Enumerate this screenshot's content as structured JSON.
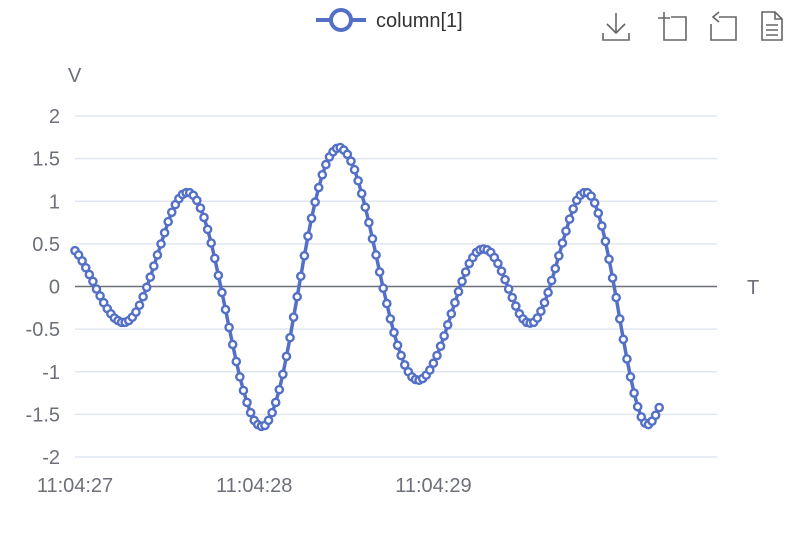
{
  "toolbox": {
    "items": [
      {
        "icon": "download-icon",
        "name": "save-as-image-button"
      },
      {
        "icon": "zoom-icon",
        "name": "data-zoom-button"
      },
      {
        "icon": "restore-icon",
        "name": "restore-button"
      },
      {
        "icon": "data-view-icon",
        "name": "data-view-button"
      }
    ]
  },
  "colors": {
    "series": "#5470c6",
    "axis": "#6e7079",
    "grid": "#e0e6f1",
    "zero_line": "#6e7079",
    "text": "#333333"
  },
  "chart_data": {
    "type": "line",
    "title": "",
    "legend": {
      "position": "top-center",
      "entries": [
        "column[1]"
      ]
    },
    "xlabel": "T",
    "ylabel": "V",
    "ylim": [
      -2,
      2
    ],
    "yticks": [
      2,
      1.5,
      1,
      0.5,
      0,
      -0.5,
      -1,
      -1.5,
      -2
    ],
    "ytick_labels": [
      "2",
      "1.5",
      "1",
      "0.5",
      "0",
      "-0.5",
      "-1",
      "-1.5",
      "-2"
    ],
    "x_start": "11:04:27",
    "x_step_seconds": 0.02,
    "xlim": [
      "11:04:27",
      "11:04:29.98"
    ],
    "xtick_labels": [
      "11:04:27",
      "11:04:28",
      "11:04:29"
    ],
    "grid": true,
    "series": [
      {
        "name": "column[1]",
        "values": [
          0.42,
          0.37,
          0.3,
          0.22,
          0.14,
          0.06,
          -0.03,
          -0.11,
          -0.19,
          -0.26,
          -0.32,
          -0.37,
          -0.4,
          -0.42,
          -0.42,
          -0.4,
          -0.36,
          -0.3,
          -0.22,
          -0.12,
          -0.01,
          0.11,
          0.24,
          0.37,
          0.5,
          0.63,
          0.76,
          0.87,
          0.96,
          1.03,
          1.08,
          1.1,
          1.1,
          1.07,
          1.01,
          0.92,
          0.81,
          0.67,
          0.51,
          0.33,
          0.13,
          -0.07,
          -0.27,
          -0.48,
          -0.68,
          -0.88,
          -1.06,
          -1.22,
          -1.36,
          -1.48,
          -1.57,
          -1.62,
          -1.64,
          -1.63,
          -1.57,
          -1.48,
          -1.36,
          -1.21,
          -1.03,
          -0.82,
          -0.6,
          -0.36,
          -0.12,
          0.12,
          0.36,
          0.59,
          0.8,
          0.99,
          1.16,
          1.31,
          1.43,
          1.52,
          1.58,
          1.62,
          1.63,
          1.6,
          1.55,
          1.47,
          1.37,
          1.24,
          1.09,
          0.93,
          0.75,
          0.56,
          0.37,
          0.17,
          -0.02,
          -0.2,
          -0.38,
          -0.54,
          -0.69,
          -0.81,
          -0.92,
          -1.0,
          -1.06,
          -1.09,
          -1.1,
          -1.08,
          -1.04,
          -0.98,
          -0.9,
          -0.81,
          -0.7,
          -0.58,
          -0.45,
          -0.32,
          -0.19,
          -0.06,
          0.06,
          0.17,
          0.27,
          0.34,
          0.4,
          0.43,
          0.44,
          0.43,
          0.4,
          0.34,
          0.27,
          0.18,
          0.08,
          -0.03,
          -0.13,
          -0.23,
          -0.32,
          -0.38,
          -0.42,
          -0.43,
          -0.42,
          -0.37,
          -0.29,
          -0.19,
          -0.07,
          0.07,
          0.21,
          0.36,
          0.51,
          0.65,
          0.79,
          0.91,
          1.01,
          1.07,
          1.1,
          1.1,
          1.06,
          0.98,
          0.86,
          0.71,
          0.53,
          0.32,
          0.1,
          -0.13,
          -0.38,
          -0.62,
          -0.85,
          -1.06,
          -1.25,
          -1.41,
          -1.53,
          -1.6,
          -1.62,
          -1.58,
          -1.51,
          -1.42
        ]
      }
    ]
  }
}
